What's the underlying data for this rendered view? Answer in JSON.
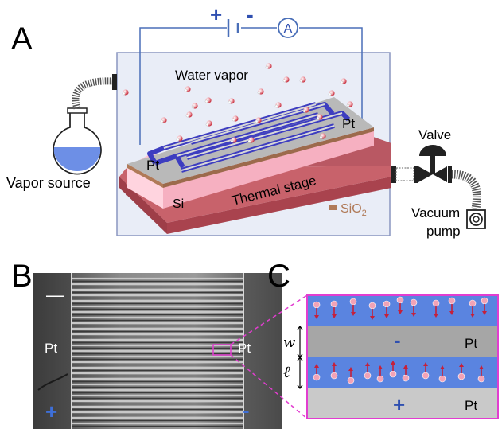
{
  "panels": {
    "a": "A",
    "b": "B",
    "c": "C"
  },
  "circuit": {
    "plus": "+",
    "minus": "-",
    "ammeter": "A"
  },
  "labels": {
    "water_vapor": "Water vapor",
    "vapor_source": "Vapor source",
    "pt_left": "Pt",
    "pt_right": "Pt",
    "si": "Si",
    "thermal_stage": "Thermal stage",
    "sio2_prefix": "SiO",
    "sio2_sub": "2",
    "valve": "Valve",
    "vacuum": "Vacuum",
    "pump": "pump"
  },
  "micro": {
    "minus": "—",
    "pt_left": "Pt",
    "pt_right": "Pt",
    "plus": "+",
    "minus_right": "-"
  },
  "zoom": {
    "w": "w",
    "l": "ℓ",
    "minus": "-",
    "plus": "+",
    "pt_top": "Pt",
    "pt_bottom": "Pt"
  },
  "colors": {
    "electrode_blue": "#3d3dc0",
    "chamber_fill": "#e9edf7",
    "pink_layer": "#ffc4d2",
    "stage_red": "#b24a55",
    "water_blue": "#5a84e0",
    "pt_gray": "#bdbdbd",
    "zoom_border": "#e23dd0"
  }
}
